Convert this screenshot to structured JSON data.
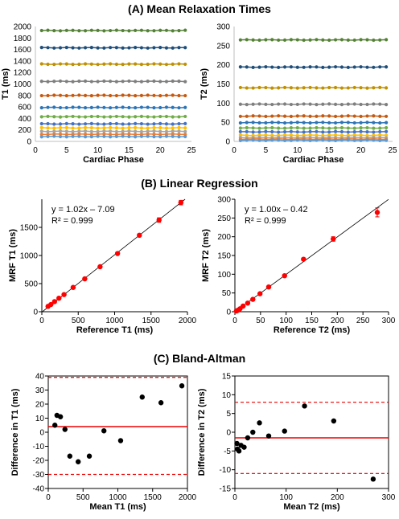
{
  "titles": {
    "a": "(A) Mean Relaxation Times",
    "b": "(B) Linear Regression",
    "c": "(C) Bland-Altman"
  },
  "chart_data": [
    {
      "id": "A1",
      "type": "line",
      "xlabel": "Cardiac Phase",
      "ylabel": "T1 (ms)",
      "xlim": [
        0,
        25
      ],
      "ylim": [
        0,
        2000
      ],
      "xticks": [
        0,
        5,
        10,
        15,
        20,
        25
      ],
      "yticks": [
        0,
        200,
        400,
        600,
        800,
        1000,
        1200,
        1400,
        1600,
        1800,
        2000
      ],
      "x": [
        1,
        2,
        3,
        4,
        5,
        6,
        7,
        8,
        9,
        10,
        11,
        12,
        13,
        14,
        15,
        16,
        17,
        18,
        19,
        20,
        21,
        22,
        23,
        24
      ],
      "series": [
        {
          "level": 1930,
          "color": "#548235"
        },
        {
          "level": 1630,
          "color": "#1F4E79"
        },
        {
          "level": 1345,
          "color": "#BF9000"
        },
        {
          "level": 1045,
          "color": "#7F7F7F"
        },
        {
          "level": 800,
          "color": "#C55A11"
        },
        {
          "level": 590,
          "color": "#2E75B6"
        },
        {
          "level": 430,
          "color": "#70AD47"
        },
        {
          "level": 305,
          "color": "#4472C4"
        },
        {
          "level": 235,
          "color": "#FFC000"
        },
        {
          "level": 175,
          "color": "#A5A5A5"
        },
        {
          "level": 125,
          "color": "#ED7D31"
        },
        {
          "level": 85,
          "color": "#5B9BD5"
        }
      ]
    },
    {
      "id": "A2",
      "type": "line",
      "xlabel": "Cardiac Phase",
      "ylabel": "T2 (ms)",
      "xlim": [
        0,
        25
      ],
      "ylim": [
        0,
        300
      ],
      "xticks": [
        0,
        5,
        10,
        15,
        20,
        25
      ],
      "yticks": [
        0,
        50,
        100,
        150,
        200,
        250,
        300
      ],
      "x": [
        1,
        2,
        3,
        4,
        5,
        6,
        7,
        8,
        9,
        10,
        11,
        12,
        13,
        14,
        15,
        16,
        17,
        18,
        19,
        20,
        21,
        22,
        23,
        24
      ],
      "series": [
        {
          "level": 265,
          "color": "#548235"
        },
        {
          "level": 194,
          "color": "#1F4E79"
        },
        {
          "level": 140,
          "color": "#BF9000"
        },
        {
          "level": 97,
          "color": "#7F7F7F"
        },
        {
          "level": 66,
          "color": "#C55A11"
        },
        {
          "level": 49,
          "color": "#2E75B6"
        },
        {
          "level": 35,
          "color": "#70AD47"
        },
        {
          "level": 25,
          "color": "#4472C4"
        },
        {
          "level": 16,
          "color": "#FFC000"
        },
        {
          "level": 10,
          "color": "#A5A5A5"
        },
        {
          "level": 6,
          "color": "#ED7D31"
        },
        {
          "level": 3,
          "color": "#5B9BD5"
        }
      ]
    },
    {
      "id": "B1",
      "type": "scatter",
      "xlabel": "Reference T1 (ms)",
      "ylabel": "MRF T1 (ms)",
      "xlim": [
        0,
        2000
      ],
      "ylim": [
        0,
        2000
      ],
      "xticks": [
        0,
        500,
        1000,
        1500,
        2000
      ],
      "yticks": [
        0,
        500,
        1000,
        1500
      ],
      "annotation": [
        "y = 1.02x – 7.09",
        "R² = 0.999"
      ],
      "fit": {
        "slope": 1.02,
        "intercept": -7.09
      },
      "points": [
        [
          85,
          95
        ],
        [
          125,
          128
        ],
        [
          175,
          180
        ],
        [
          235,
          240
        ],
        [
          305,
          305
        ],
        [
          430,
          432
        ],
        [
          590,
          585
        ],
        [
          800,
          800
        ],
        [
          1040,
          1035
        ],
        [
          1340,
          1360
        ],
        [
          1610,
          1630
        ],
        [
          1910,
          1940
        ]
      ],
      "errors": [
        5,
        5,
        5,
        5,
        5,
        5,
        8,
        10,
        15,
        20,
        40,
        40
      ]
    },
    {
      "id": "B2",
      "type": "scatter",
      "xlabel": "Reference T2 (ms)",
      "ylabel": "MRF T2 (ms)",
      "xlim": [
        0,
        300
      ],
      "ylim": [
        0,
        300
      ],
      "xticks": [
        0,
        50,
        100,
        150,
        200,
        250,
        300
      ],
      "yticks": [
        0,
        50,
        100,
        150,
        200,
        250,
        300
      ],
      "annotation": [
        "y = 1.00x – 0.42",
        "R² = 0.999"
      ],
      "fit": {
        "slope": 1.0,
        "intercept": -0.42
      },
      "points": [
        [
          3,
          2
        ],
        [
          6,
          4
        ],
        [
          10,
          8
        ],
        [
          16,
          15
        ],
        [
          25,
          23
        ],
        [
          35,
          33
        ],
        [
          49,
          48
        ],
        [
          66,
          66
        ],
        [
          97,
          96
        ],
        [
          134,
          140
        ],
        [
          192,
          194
        ],
        [
          278,
          265
        ]
      ],
      "errors": [
        1,
        1,
        1,
        1,
        1,
        1,
        1,
        2,
        2,
        3,
        6,
        12
      ]
    },
    {
      "id": "C1",
      "type": "scatter",
      "xlabel": "Mean T1 (ms)",
      "ylabel": "Difference in T1 (ms)",
      "xlim": [
        0,
        2000
      ],
      "ylim": [
        -40,
        40
      ],
      "xticks": [
        0,
        500,
        1000,
        1500,
        2000
      ],
      "yticks": [
        -40,
        -30,
        -20,
        -10,
        0,
        10,
        20,
        30,
        40
      ],
      "mean_line": 4,
      "limits": [
        -30,
        39
      ],
      "points": [
        [
          95,
          5
        ],
        [
          125,
          12
        ],
        [
          175,
          11
        ],
        [
          240,
          2
        ],
        [
          310,
          -17
        ],
        [
          430,
          -21
        ],
        [
          590,
          -17
        ],
        [
          800,
          1
        ],
        [
          1040,
          -6
        ],
        [
          1350,
          25
        ],
        [
          1620,
          21
        ],
        [
          1920,
          33
        ]
      ]
    },
    {
      "id": "C2",
      "type": "scatter",
      "xlabel": "Mean T2 (ms)",
      "ylabel": "Difference in T2 (ms)",
      "xlim": [
        0,
        300
      ],
      "ylim": [
        -15,
        15
      ],
      "xticks": [
        0,
        100,
        200,
        300
      ],
      "yticks": [
        -15,
        -10,
        -5,
        0,
        5,
        10,
        15
      ],
      "mean_line": -1.5,
      "limits": [
        -11,
        8
      ],
      "points": [
        [
          4,
          -3
        ],
        [
          5,
          -4.5
        ],
        [
          8,
          -5
        ],
        [
          12,
          -3.5
        ],
        [
          18,
          -4
        ],
        [
          25,
          -1.5
        ],
        [
          35,
          0
        ],
        [
          48,
          2.5
        ],
        [
          66,
          -1
        ],
        [
          97,
          0.3
        ],
        [
          136,
          7
        ],
        [
          193,
          3
        ],
        [
          270,
          -12.5
        ]
      ]
    }
  ]
}
